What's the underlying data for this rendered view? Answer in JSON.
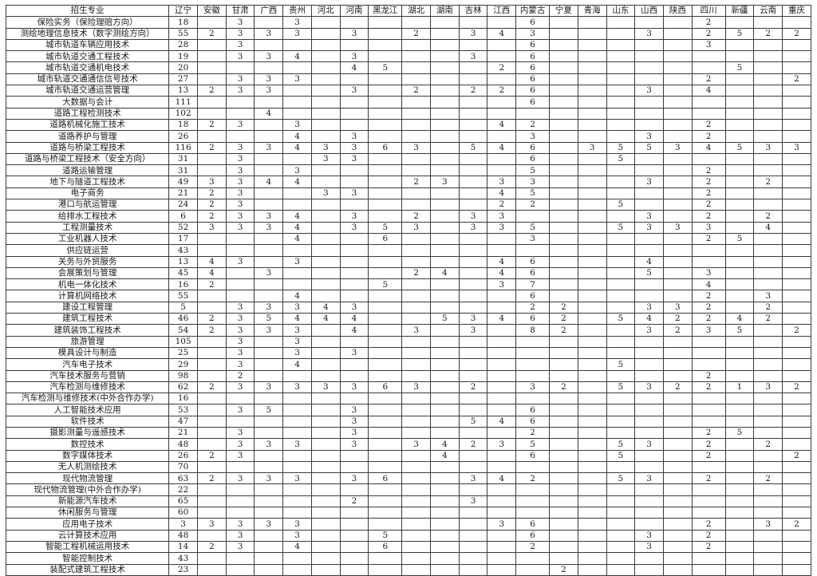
{
  "table": {
    "corner_header": "招生专业",
    "province_columns": [
      "辽宁",
      "安徽",
      "甘肃",
      "广西",
      "贵州",
      "河北",
      "河南",
      "黑龙江",
      "湖北",
      "湖南",
      "吉林",
      "江西",
      "内蒙古",
      "宁夏",
      "青海",
      "山东",
      "山西",
      "陕西",
      "四川",
      "新疆",
      "云南",
      "重庆"
    ],
    "rows": [
      {
        "name": "保险实务（保险理赔方向）",
        "values": [
          "18",
          "",
          "3",
          "",
          "3",
          "",
          "",
          "",
          "",
          "",
          "",
          "",
          "6",
          "",
          "",
          "",
          "",
          "",
          "2",
          "",
          "",
          ""
        ]
      },
      {
        "name": "测绘地理信息技术（数字测绘方向）",
        "values": [
          "55",
          "2",
          "3",
          "3",
          "3",
          "",
          "3",
          "",
          "2",
          "",
          "3",
          "4",
          "3",
          "",
          "",
          "",
          "3",
          "",
          "2",
          "5",
          "2",
          "2"
        ]
      },
      {
        "name": "城市轨道车辆应用技术",
        "values": [
          "28",
          "",
          "3",
          "",
          "",
          "",
          "",
          "",
          "",
          "",
          "",
          "",
          "6",
          "",
          "",
          "",
          "",
          "",
          "3",
          "",
          "",
          ""
        ]
      },
      {
        "name": "城市轨道交通工程技术",
        "values": [
          "19",
          "",
          "3",
          "3",
          "4",
          "",
          "3",
          "",
          "",
          "",
          "3",
          "",
          "6",
          "",
          "",
          "",
          "",
          "",
          "",
          "",
          "",
          ""
        ]
      },
      {
        "name": "城市轨道交通机电技术",
        "values": [
          "20",
          "",
          "",
          "",
          "",
          "",
          "4",
          "5",
          "",
          "",
          "",
          "2",
          "6",
          "",
          "",
          "",
          "",
          "",
          "",
          "5",
          "",
          ""
        ]
      },
      {
        "name": "城市轨道交通通信信号技术",
        "values": [
          "27",
          "",
          "3",
          "3",
          "3",
          "",
          "",
          "",
          "",
          "",
          "",
          "",
          "6",
          "",
          "",
          "",
          "",
          "",
          "2",
          "",
          "",
          "2"
        ]
      },
      {
        "name": "城市轨道交通运营管理",
        "values": [
          "13",
          "2",
          "3",
          "3",
          "",
          "",
          "3",
          "",
          "2",
          "",
          "2",
          "2",
          "6",
          "",
          "",
          "",
          "3",
          "",
          "4",
          "",
          "",
          ""
        ]
      },
      {
        "name": "大数据与会计",
        "values": [
          "111",
          "",
          "",
          "",
          "",
          "",
          "",
          "",
          "",
          "",
          "",
          "",
          "6",
          "",
          "",
          "",
          "",
          "",
          "",
          "",
          "",
          ""
        ]
      },
      {
        "name": "道路工程检测技术",
        "values": [
          "102",
          "",
          "",
          "4",
          "",
          "",
          "",
          "",
          "",
          "",
          "",
          "",
          "",
          "",
          "",
          "",
          "",
          "",
          "",
          "",
          "",
          ""
        ]
      },
      {
        "name": "道路机械化施工技术",
        "values": [
          "18",
          "2",
          "3",
          "",
          "3",
          "",
          "",
          "",
          "",
          "",
          "",
          "4",
          "2",
          "",
          "",
          "",
          "",
          "",
          "2",
          "",
          "",
          ""
        ]
      },
      {
        "name": "道路养护与管理",
        "values": [
          "26",
          "",
          "",
          "",
          "4",
          "",
          "3",
          "",
          "",
          "",
          "",
          "",
          "3",
          "",
          "",
          "",
          "3",
          "",
          "2",
          "",
          "",
          ""
        ]
      },
      {
        "name": "道路与桥梁工程技术",
        "values": [
          "116",
          "2",
          "3",
          "3",
          "4",
          "3",
          "3",
          "6",
          "3",
          "",
          "5",
          "4",
          "6",
          "",
          "3",
          "5",
          "5",
          "3",
          "4",
          "5",
          "3",
          "3"
        ]
      },
      {
        "name": "道路与桥梁工程技术（安全方向）",
        "values": [
          "31",
          "",
          "3",
          "",
          "",
          "3",
          "3",
          "",
          "",
          "",
          "",
          "",
          "6",
          "",
          "",
          "5",
          "",
          "",
          "",
          "",
          "",
          ""
        ]
      },
      {
        "name": "道路运输管理",
        "values": [
          "31",
          "",
          "3",
          "",
          "3",
          "",
          "",
          "",
          "",
          "",
          "",
          "",
          "5",
          "",
          "",
          "",
          "",
          "",
          "2",
          "",
          "",
          ""
        ]
      },
      {
        "name": "地下与隧道工程技术",
        "values": [
          "49",
          "3",
          "3",
          "4",
          "4",
          "",
          "",
          "",
          "2",
          "3",
          "",
          "3",
          "3",
          "",
          "",
          "",
          "3",
          "",
          "2",
          "",
          "2",
          ""
        ]
      },
      {
        "name": "电子商务",
        "values": [
          "21",
          "2",
          "3",
          "",
          "",
          "3",
          "3",
          "",
          "",
          "",
          "",
          "4",
          "5",
          "",
          "",
          "",
          "",
          "",
          "2",
          "",
          "",
          ""
        ]
      },
      {
        "name": "港口与航运管理",
        "values": [
          "24",
          "2",
          "3",
          "",
          "",
          "",
          "",
          "",
          "",
          "",
          "",
          "2",
          "2",
          "",
          "",
          "5",
          "",
          "",
          "2",
          "",
          "",
          ""
        ]
      },
      {
        "name": "给排水工程技术",
        "values": [
          "6",
          "2",
          "3",
          "3",
          "4",
          "",
          "3",
          "",
          "2",
          "",
          "3",
          "3",
          "",
          "",
          "",
          "",
          "3",
          "",
          "2",
          "",
          "2",
          ""
        ]
      },
      {
        "name": "工程测量技术",
        "values": [
          "52",
          "3",
          "3",
          "3",
          "4",
          "",
          "3",
          "5",
          "3",
          "",
          "3",
          "3",
          "5",
          "",
          "",
          "5",
          "3",
          "3",
          "3",
          "",
          "4",
          ""
        ]
      },
      {
        "name": "工业机器人技术",
        "values": [
          "17",
          "",
          "",
          "",
          "4",
          "",
          "",
          "6",
          "",
          "",
          "",
          "",
          "3",
          "",
          "",
          "",
          "",
          "",
          "2",
          "5",
          "",
          ""
        ]
      },
      {
        "name": "供应链运营",
        "values": [
          "43",
          "",
          "",
          "",
          "",
          "",
          "",
          "",
          "",
          "",
          "",
          "",
          "",
          "",
          "",
          "",
          "",
          "",
          "",
          "",
          "",
          ""
        ]
      },
      {
        "name": "关务与外贸服务",
        "values": [
          "13",
          "4",
          "3",
          "",
          "3",
          "",
          "",
          "",
          "",
          "",
          "",
          "4",
          "6",
          "",
          "",
          "",
          "4",
          "",
          "",
          "",
          "",
          ""
        ]
      },
      {
        "name": "会展策划与管理",
        "values": [
          "45",
          "4",
          "",
          "3",
          "",
          "",
          "",
          "",
          "2",
          "4",
          "",
          "4",
          "6",
          "",
          "",
          "",
          "5",
          "",
          "3",
          "",
          "",
          ""
        ]
      },
      {
        "name": "机电一体化技术",
        "values": [
          "16",
          "2",
          "",
          "",
          "",
          "",
          "",
          "5",
          "",
          "",
          "",
          "3",
          "7",
          "",
          "",
          "",
          "",
          "",
          "4",
          "",
          "",
          ""
        ]
      },
      {
        "name": "计算机网络技术",
        "values": [
          "55",
          "",
          "",
          "",
          "4",
          "",
          "",
          "",
          "",
          "",
          "",
          "",
          "6",
          "",
          "",
          "",
          "",
          "",
          "2",
          "",
          "3",
          ""
        ]
      },
      {
        "name": "建设工程管理",
        "values": [
          "5",
          "",
          "3",
          "3",
          "3",
          "4",
          "3",
          "",
          "",
          "",
          "",
          "",
          "2",
          "2",
          "",
          "",
          "3",
          "3",
          "2",
          "",
          "2",
          ""
        ]
      },
      {
        "name": "建筑工程技术",
        "values": [
          "46",
          "2",
          "3",
          "5",
          "4",
          "4",
          "4",
          "",
          "",
          "5",
          "3",
          "4",
          "6",
          "2",
          "",
          "5",
          "4",
          "2",
          "2",
          "4",
          "2",
          ""
        ]
      },
      {
        "name": "建筑装饰工程技术",
        "values": [
          "54",
          "2",
          "3",
          "3",
          "3",
          "",
          "4",
          "",
          "3",
          "",
          "3",
          "",
          "8",
          "2",
          "",
          "",
          "3",
          "2",
          "3",
          "5",
          "",
          "2"
        ]
      },
      {
        "name": "旅游管理",
        "values": [
          "105",
          "",
          "3",
          "",
          "3",
          "",
          "",
          "",
          "",
          "",
          "",
          "",
          "",
          "",
          "",
          "",
          "",
          "",
          "",
          "",
          "",
          ""
        ]
      },
      {
        "name": "模具设计与制造",
        "values": [
          "25",
          "",
          "3",
          "",
          "3",
          "",
          "3",
          "",
          "",
          "",
          "",
          "",
          "",
          "",
          "",
          "",
          "",
          "",
          "",
          "",
          "",
          ""
        ]
      },
      {
        "name": "汽车电子技术",
        "values": [
          "29",
          "",
          "3",
          "",
          "4",
          "",
          "",
          "",
          "",
          "",
          "",
          "",
          "",
          "",
          "",
          "5",
          "",
          "",
          "",
          "",
          "",
          ""
        ]
      },
      {
        "name": "汽车技术服务与营销",
        "values": [
          "98",
          "",
          "2",
          "",
          "",
          "",
          "",
          "",
          "",
          "",
          "",
          "",
          "",
          "",
          "",
          "",
          "",
          "",
          "2",
          "",
          "",
          ""
        ]
      },
      {
        "name": "汽车检测与维修技术",
        "values": [
          "62",
          "2",
          "3",
          "3",
          "3",
          "3",
          "3",
          "6",
          "3",
          "",
          "2",
          "",
          "3",
          "2",
          "",
          "5",
          "3",
          "2",
          "2",
          "1",
          "3",
          "2"
        ]
      },
      {
        "name": "汽车检测与维修技术(中外合作办学)",
        "values": [
          "16",
          "",
          "",
          "",
          "",
          "",
          "",
          "",
          "",
          "",
          "",
          "",
          "",
          "",
          "",
          "",
          "",
          "",
          "",
          "",
          "",
          ""
        ]
      },
      {
        "name": "人工智能技术应用",
        "values": [
          "53",
          "",
          "3",
          "5",
          "",
          "",
          "3",
          "",
          "",
          "",
          "",
          "",
          "6",
          "",
          "",
          "",
          "",
          "",
          "",
          "",
          "",
          ""
        ]
      },
      {
        "name": "软件技术",
        "values": [
          "47",
          "",
          "",
          "",
          "",
          "",
          "3",
          "",
          "",
          "",
          "5",
          "4",
          "6",
          "",
          "",
          "",
          "",
          "",
          "",
          "",
          "",
          ""
        ]
      },
      {
        "name": "摄影测量与遥感技术",
        "values": [
          "21",
          "",
          "3",
          "",
          "",
          "",
          "3",
          "",
          "",
          "",
          "",
          "",
          "2",
          "",
          "",
          "",
          "",
          "",
          "2",
          "5",
          "",
          ""
        ]
      },
      {
        "name": "数控技术",
        "values": [
          "48",
          "",
          "3",
          "3",
          "3",
          "",
          "3",
          "",
          "3",
          "4",
          "2",
          "3",
          "5",
          "",
          "",
          "5",
          "3",
          "",
          "2",
          "",
          "2",
          ""
        ]
      },
      {
        "name": "数字媒体技术",
        "values": [
          "26",
          "2",
          "3",
          "",
          "",
          "",
          "",
          "",
          "",
          "4",
          "",
          "",
          "6",
          "",
          "",
          "5",
          "",
          "",
          "2",
          "",
          "",
          "2"
        ]
      },
      {
        "name": "无人机测绘技术",
        "values": [
          "70",
          "",
          "",
          "",
          "",
          "",
          "",
          "",
          "",
          "",
          "",
          "",
          "",
          "",
          "",
          "",
          "",
          "",
          "",
          "",
          "",
          ""
        ]
      },
      {
        "name": "现代物流管理",
        "values": [
          "63",
          "2",
          "3",
          "3",
          "3",
          "",
          "3",
          "6",
          "",
          "",
          "3",
          "4",
          "2",
          "",
          "",
          "5",
          "3",
          "",
          "2",
          "",
          "2",
          ""
        ]
      },
      {
        "name": "现代物流管理(中外合作办学)",
        "values": [
          "22",
          "",
          "",
          "",
          "",
          "",
          "",
          "",
          "",
          "",
          "",
          "",
          "",
          "",
          "",
          "",
          "",
          "",
          "",
          "",
          "",
          ""
        ]
      },
      {
        "name": "新能源汽车技术",
        "values": [
          "65",
          "",
          "",
          "",
          "",
          "",
          "2",
          "",
          "",
          "",
          "3",
          "",
          "",
          "",
          "",
          "",
          "",
          "",
          "",
          "",
          "",
          ""
        ]
      },
      {
        "name": "休闲服务与管理",
        "values": [
          "60",
          "",
          "",
          "",
          "",
          "",
          "",
          "",
          "",
          "",
          "",
          "",
          "",
          "",
          "",
          "",
          "",
          "",
          "",
          "",
          "",
          ""
        ]
      },
      {
        "name": "应用电子技术",
        "values": [
          "3",
          "3",
          "3",
          "3",
          "3",
          "",
          "",
          "",
          "",
          "",
          "",
          "3",
          "6",
          "",
          "",
          "",
          "",
          "",
          "2",
          "",
          "3",
          "2"
        ]
      },
      {
        "name": "云计算技术应用",
        "values": [
          "48",
          "",
          "3",
          "",
          "3",
          "",
          "",
          "5",
          "",
          "",
          "",
          "",
          "6",
          "",
          "",
          "",
          "3",
          "",
          "2",
          "",
          "",
          ""
        ]
      },
      {
        "name": "智能工程机械运用技术",
        "values": [
          "14",
          "2",
          "3",
          "",
          "4",
          "",
          "",
          "6",
          "",
          "",
          "",
          "",
          "2",
          "",
          "",
          "",
          "3",
          "",
          "2",
          "",
          "",
          ""
        ]
      },
      {
        "name": "智能控制技术",
        "values": [
          "43",
          "",
          "",
          "",
          "",
          "",
          "",
          "",
          "",
          "",
          "",
          "",
          "",
          "",
          "",
          "",
          "",
          "",
          "",
          "",
          "",
          ""
        ]
      },
      {
        "name": "装配式建筑工程技术",
        "values": [
          "23",
          "",
          "",
          "",
          "",
          "",
          "",
          "",
          "",
          "",
          "",
          "",
          "",
          "2",
          "",
          "",
          "",
          "",
          "",
          "",
          "",
          ""
        ]
      }
    ]
  }
}
